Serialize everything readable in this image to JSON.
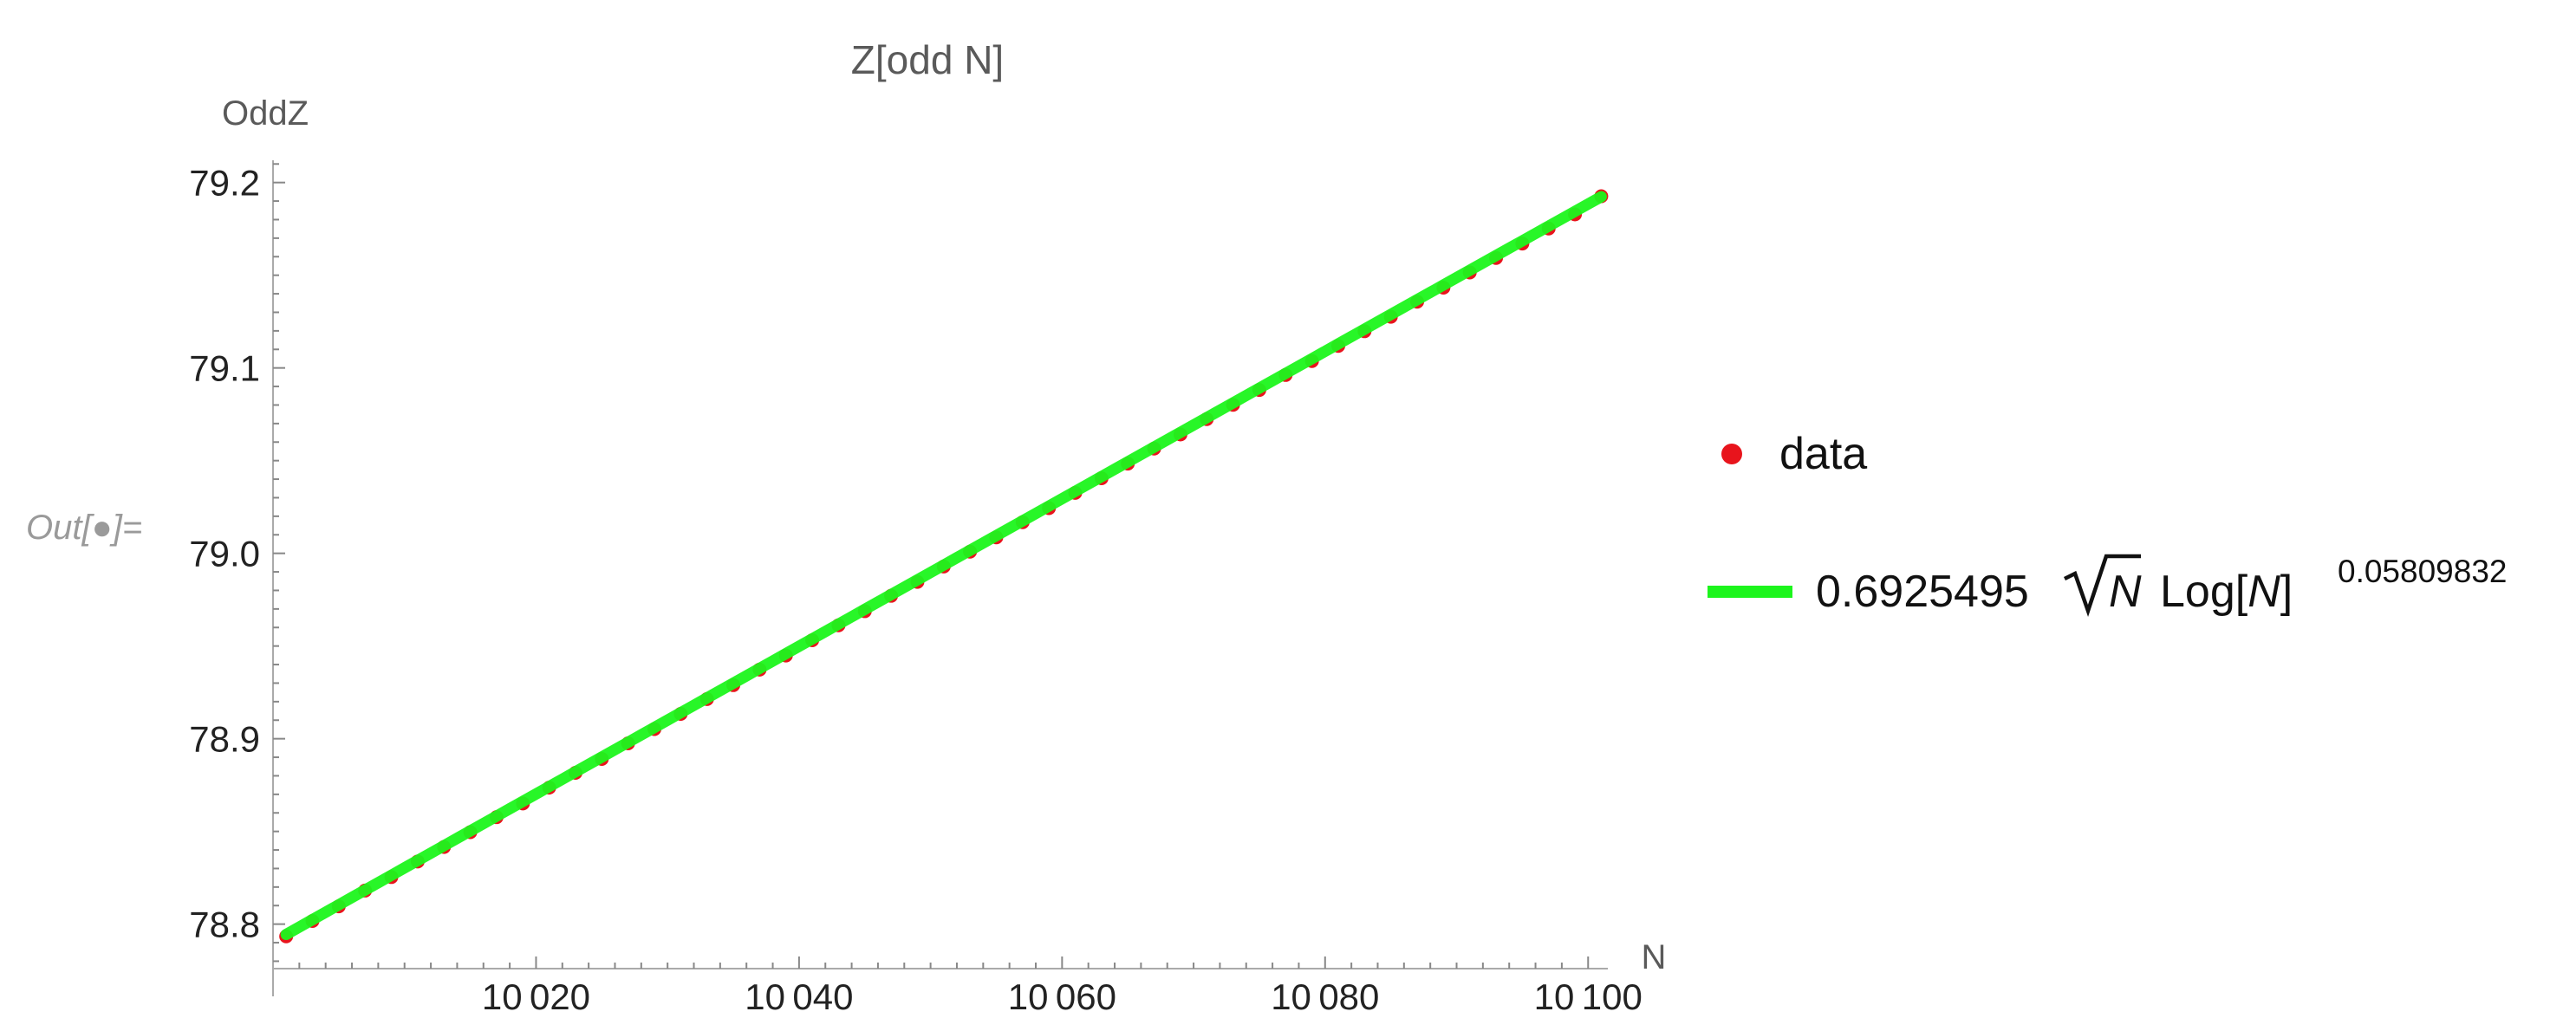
{
  "cell": {
    "out_label": "Out[●]="
  },
  "chart_data": {
    "type": "scatter",
    "title": "Z[odd N]",
    "xlabel": "N",
    "ylabel": "OddZ",
    "xlim": [
      10000,
      10101.5
    ],
    "ylim": [
      78.776,
      79.212
    ],
    "x_ticks": [
      10020,
      10040,
      10060,
      10080,
      10100
    ],
    "x_tick_labels": [
      "10 020",
      "10 040",
      "10 060",
      "10 080",
      "10 100"
    ],
    "y_ticks": [
      78.8,
      78.9,
      79.0,
      79.1,
      79.2
    ],
    "y_tick_labels": [
      "78.8",
      "78.9",
      "79.0",
      "79.1",
      "79.2"
    ],
    "grid": false,
    "legend_position": "right",
    "series": [
      {
        "name": "data",
        "kind": "points",
        "color": "#e8141c",
        "x_start": 10001,
        "x_step": 2,
        "x_end": 10101,
        "values": [
          78.7934,
          78.8017,
          78.8096,
          78.8181,
          78.8254,
          78.8338,
          78.8416,
          78.8496,
          78.8577,
          78.8651,
          78.8736,
          78.8816,
          78.8891,
          78.8975,
          78.9052,
          78.9134,
          78.9214,
          78.9289,
          78.9373,
          78.9449,
          78.9531,
          78.9612,
          78.9688,
          78.9771,
          78.9846,
          78.9929,
          79.0009,
          79.0086,
          79.0168,
          79.0244,
          79.0326,
          79.0405,
          79.0484,
          79.0565,
          79.0641,
          79.0724,
          79.0801,
          79.0881,
          79.0962,
          79.1037,
          79.1119,
          79.1198,
          79.1276,
          79.1357,
          79.1433,
          79.1515,
          79.1593,
          79.1671,
          79.1752,
          79.1828,
          79.1926
        ]
      },
      {
        "name": "0.6925495 √N Log[N]^0.05809832",
        "kind": "line",
        "color": "#1cf51c",
        "coefficient": 0.6925495,
        "exponent": 0.05809832,
        "x_range": [
          10001,
          10101
        ]
      }
    ],
    "legend": {
      "data_label": "data",
      "fit_coefficient": "0.6925495",
      "fit_sqrt_var": "N",
      "fit_log_prefix": "Log[",
      "fit_log_var": "N",
      "fit_log_suffix": "]",
      "fit_exponent": "0.05809832"
    }
  }
}
